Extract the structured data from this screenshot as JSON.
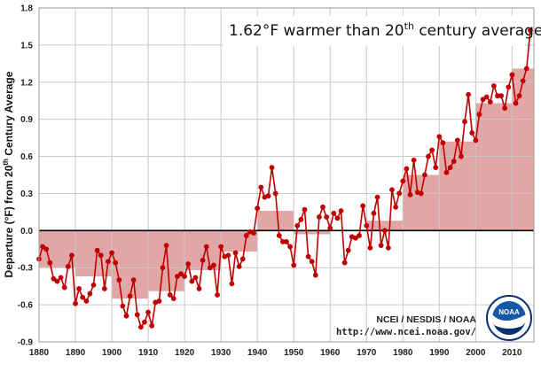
{
  "chart_data": {
    "type": "line",
    "title": "",
    "ylabel_parts": [
      "Departure (°F) from 20",
      "th",
      " Century Average"
    ],
    "xlabel": "",
    "xlim": [
      1880,
      2016
    ],
    "ylim": [
      -0.9,
      1.8
    ],
    "xticks": [
      1880,
      1890,
      1900,
      1910,
      1920,
      1930,
      1940,
      1950,
      1960,
      1970,
      1980,
      1990,
      2000,
      2010
    ],
    "yticks": [
      -0.9,
      -0.6,
      -0.3,
      0.0,
      0.3,
      0.6,
      0.9,
      1.2,
      1.5,
      1.8
    ],
    "ytick_labels": [
      "-0.9",
      "-0.6",
      "-0.3",
      "0.0",
      "0.3",
      "0.6",
      "0.9",
      "1.2",
      "1.5",
      "1.8"
    ],
    "grid": true,
    "annotation_parts": [
      "1.62°F warmer than 20",
      "th",
      " century average"
    ],
    "credit_line1": "NCEI / NESDIS / NOAA",
    "credit_line2": "http://www.ncei.noaa.gov/",
    "logo_text": "NOAA",
    "colors": {
      "series": "#c00000",
      "decade_fill": "#e3a6a6",
      "grid": "#c8c8c8",
      "zero_line": "#000000"
    },
    "series": [
      {
        "x": [
          1880,
          1881,
          1882,
          1883,
          1884,
          1885,
          1886,
          1887,
          1888,
          1889,
          1890,
          1891,
          1892,
          1893,
          1894,
          1895,
          1896,
          1897,
          1898,
          1899,
          1900,
          1901,
          1902,
          1903,
          1904,
          1905,
          1906,
          1907,
          1908,
          1909,
          1910,
          1911,
          1912,
          1913,
          1914,
          1915,
          1916,
          1917,
          1918,
          1919,
          1920,
          1921,
          1922,
          1923,
          1924,
          1925,
          1926,
          1927,
          1928,
          1929,
          1930,
          1931,
          1932,
          1933,
          1934,
          1935,
          1936,
          1937,
          1938,
          1939,
          1940,
          1941,
          1942,
          1943,
          1944,
          1945,
          1946,
          1947,
          1948,
          1949,
          1950,
          1951,
          1952,
          1953,
          1954,
          1955,
          1956,
          1957,
          1958,
          1959,
          1960,
          1961,
          1962,
          1963,
          1964,
          1965,
          1966,
          1967,
          1968,
          1969,
          1970,
          1971,
          1972,
          1973,
          1974,
          1975,
          1976,
          1977,
          1978,
          1979,
          1980,
          1981,
          1982,
          1983,
          1984,
          1985,
          1986,
          1987,
          1988,
          1989,
          1990,
          1991,
          1992,
          1993,
          1994,
          1995,
          1996,
          1997,
          1998,
          1999,
          2000,
          2001,
          2002,
          2003,
          2004,
          2005,
          2006,
          2007,
          2008,
          2009,
          2010,
          2011,
          2012,
          2013,
          2014,
          2015
        ],
        "y": [
          -0.23,
          -0.13,
          -0.15,
          -0.26,
          -0.39,
          -0.41,
          -0.38,
          -0.46,
          -0.29,
          -0.2,
          -0.59,
          -0.47,
          -0.54,
          -0.57,
          -0.51,
          -0.44,
          -0.16,
          -0.2,
          -0.47,
          -0.25,
          -0.18,
          -0.26,
          -0.4,
          -0.61,
          -0.69,
          -0.53,
          -0.4,
          -0.68,
          -0.78,
          -0.74,
          -0.66,
          -0.77,
          -0.58,
          -0.57,
          -0.3,
          -0.12,
          -0.52,
          -0.55,
          -0.37,
          -0.35,
          -0.37,
          -0.27,
          -0.41,
          -0.38,
          -0.47,
          -0.24,
          -0.13,
          -0.3,
          -0.28,
          -0.52,
          -0.13,
          -0.21,
          -0.2,
          -0.43,
          -0.18,
          -0.29,
          -0.23,
          -0.04,
          -0.01,
          -0.02,
          0.18,
          0.35,
          0.27,
          0.28,
          0.51,
          0.3,
          -0.04,
          -0.09,
          -0.09,
          -0.13,
          -0.28,
          0.04,
          0.09,
          0.17,
          -0.21,
          -0.25,
          -0.36,
          0.11,
          0.19,
          0.11,
          0.02,
          0.14,
          0.1,
          0.16,
          -0.26,
          -0.16,
          -0.05,
          -0.06,
          -0.04,
          0.2,
          0.04,
          -0.14,
          0.14,
          0.27,
          -0.12,
          0.0,
          -0.14,
          0.33,
          0.19,
          0.3,
          0.4,
          0.5,
          0.29,
          0.57,
          0.31,
          0.3,
          0.45,
          0.6,
          0.65,
          0.51,
          0.76,
          0.71,
          0.47,
          0.51,
          0.56,
          0.73,
          0.6,
          0.88,
          1.1,
          0.79,
          0.73,
          0.94,
          1.06,
          1.08,
          1.04,
          1.17,
          1.09,
          1.09,
          0.99,
          1.16,
          1.26,
          1.03,
          1.09,
          1.21,
          1.31,
          1.62
        ]
      },
      {
        "x0": [
          1880,
          1890,
          1900,
          1910,
          1920,
          1930,
          1940,
          1950,
          1960,
          1970,
          1980,
          1990,
          2000,
          2010
        ],
        "x1": [
          1890,
          1900,
          1910,
          1920,
          1930,
          1940,
          1950,
          1960,
          1970,
          1980,
          1990,
          2000,
          2010,
          2016
        ],
        "values": [
          -0.3,
          -0.37,
          -0.55,
          -0.49,
          -0.32,
          -0.17,
          0.16,
          -0.03,
          0.0,
          0.08,
          0.45,
          0.72,
          1.03,
          1.31
        ]
      }
    ]
  }
}
